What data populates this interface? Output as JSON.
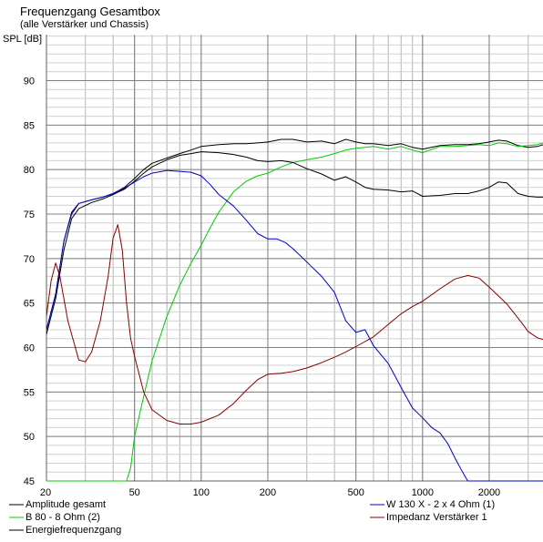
{
  "header": {
    "title": "Frequenzgang Gesamtbox",
    "subtitle": "(alle Verstärker und Chassis)",
    "ylabel": "SPL [dB]"
  },
  "chart_data": {
    "type": "line",
    "title": "Frequenzgang Gesamtbox",
    "subtitle": "(alle Verstärker und Chassis)",
    "xlabel": "",
    "ylabel": "SPL [dB]",
    "xscale": "log",
    "xlim": [
      20,
      3500
    ],
    "ylim": [
      45,
      95
    ],
    "grid": true,
    "legend_position": "bottom",
    "xticks": [
      20,
      50,
      100,
      200,
      500,
      1000,
      2000
    ],
    "xtick_labels": [
      "20",
      "50",
      "100",
      "200",
      "500",
      "1000",
      "2000"
    ],
    "yticks": [
      45,
      50,
      55,
      60,
      65,
      70,
      75,
      80,
      85,
      90
    ],
    "ytick_labels": [
      "45",
      "50",
      "55",
      "60",
      "65",
      "70",
      "75",
      "80",
      "85",
      "90"
    ],
    "series": [
      {
        "name": "Amplitude gesamt",
        "color": "#000000",
        "points": [
          [
            20,
            62
          ],
          [
            22,
            66
          ],
          [
            24,
            72
          ],
          [
            26,
            75.2
          ],
          [
            28,
            76.2
          ],
          [
            32,
            76.6
          ],
          [
            36,
            76.9
          ],
          [
            40,
            77.3
          ],
          [
            45,
            78
          ],
          [
            50,
            79
          ],
          [
            55,
            80
          ],
          [
            60,
            80.7
          ],
          [
            70,
            81.3
          ],
          [
            80,
            81.8
          ],
          [
            90,
            82.2
          ],
          [
            100,
            82.6
          ],
          [
            120,
            82.8
          ],
          [
            140,
            82.9
          ],
          [
            160,
            82.9
          ],
          [
            180,
            83.0
          ],
          [
            200,
            83.1
          ],
          [
            230,
            83.4
          ],
          [
            260,
            83.4
          ],
          [
            300,
            83.1
          ],
          [
            350,
            83.2
          ],
          [
            400,
            82.9
          ],
          [
            450,
            83.4
          ],
          [
            500,
            83.1
          ],
          [
            550,
            82.9
          ],
          [
            600,
            82.9
          ],
          [
            700,
            82.7
          ],
          [
            800,
            82.9
          ],
          [
            900,
            82.5
          ],
          [
            1000,
            82.3
          ],
          [
            1200,
            82.7
          ],
          [
            1400,
            82.8
          ],
          [
            1600,
            82.8
          ],
          [
            1800,
            82.9
          ],
          [
            2000,
            83.1
          ],
          [
            2200,
            83.3
          ],
          [
            2400,
            83.2
          ],
          [
            2700,
            82.7
          ],
          [
            3000,
            82.5
          ],
          [
            3300,
            82.6
          ],
          [
            3500,
            82.8
          ]
        ]
      },
      {
        "name": "B 80 - 8 Ohm (2)",
        "color": "#00cc00",
        "points": [
          [
            20,
            45
          ],
          [
            46,
            45
          ],
          [
            48,
            46.5
          ],
          [
            50,
            50
          ],
          [
            55,
            54.5
          ],
          [
            60,
            58.5
          ],
          [
            70,
            63.5
          ],
          [
            80,
            67
          ],
          [
            90,
            69.5
          ],
          [
            100,
            71.5
          ],
          [
            110,
            73.5
          ],
          [
            120,
            75.2
          ],
          [
            140,
            77.5
          ],
          [
            160,
            78.7
          ],
          [
            180,
            79.3
          ],
          [
            200,
            79.6
          ],
          [
            230,
            80.3
          ],
          [
            260,
            80.8
          ],
          [
            300,
            81.1
          ],
          [
            350,
            81.4
          ],
          [
            400,
            81.8
          ],
          [
            450,
            82.2
          ],
          [
            500,
            82.4
          ],
          [
            550,
            82.5
          ],
          [
            600,
            82.6
          ],
          [
            700,
            82.3
          ],
          [
            800,
            82.6
          ],
          [
            900,
            82.2
          ],
          [
            1000,
            81.9
          ],
          [
            1200,
            82.6
          ],
          [
            1400,
            82.6
          ],
          [
            1600,
            82.7
          ],
          [
            1800,
            82.8
          ],
          [
            2000,
            82.7
          ],
          [
            2200,
            83.0
          ],
          [
            2400,
            82.9
          ],
          [
            2700,
            82.6
          ],
          [
            3000,
            82.7
          ],
          [
            3300,
            82.8
          ],
          [
            3500,
            83.0
          ]
        ]
      },
      {
        "name": "Energiefrequenzgang",
        "color": "#000000",
        "points": [
          [
            20,
            61.5
          ],
          [
            22,
            65.5
          ],
          [
            24,
            71
          ],
          [
            26,
            74.5
          ],
          [
            28,
            75.6
          ],
          [
            32,
            76.3
          ],
          [
            36,
            76.7
          ],
          [
            40,
            77.2
          ],
          [
            45,
            77.8
          ],
          [
            50,
            78.7
          ],
          [
            55,
            79.6
          ],
          [
            60,
            80.3
          ],
          [
            70,
            81.1
          ],
          [
            80,
            81.6
          ],
          [
            90,
            81.8
          ],
          [
            100,
            82.0
          ],
          [
            120,
            81.9
          ],
          [
            140,
            81.7
          ],
          [
            160,
            81.4
          ],
          [
            180,
            81.0
          ],
          [
            200,
            80.9
          ],
          [
            230,
            81.0
          ],
          [
            260,
            80.8
          ],
          [
            300,
            80.1
          ],
          [
            350,
            79.5
          ],
          [
            400,
            78.8
          ],
          [
            450,
            79.2
          ],
          [
            500,
            78.6
          ],
          [
            550,
            78.0
          ],
          [
            600,
            77.8
          ],
          [
            700,
            77.7
          ],
          [
            800,
            77.5
          ],
          [
            900,
            77.6
          ],
          [
            1000,
            77.0
          ],
          [
            1200,
            77.1
          ],
          [
            1400,
            77.3
          ],
          [
            1600,
            77.3
          ],
          [
            1800,
            77.6
          ],
          [
            2000,
            78.0
          ],
          [
            2200,
            78.6
          ],
          [
            2400,
            78.5
          ],
          [
            2700,
            77.3
          ],
          [
            3000,
            77.0
          ],
          [
            3300,
            76.9
          ],
          [
            3500,
            76.9
          ]
        ]
      },
      {
        "name": "W 130 X - 2 x 4 Ohm (1)",
        "color": "#0000cc",
        "points": [
          [
            20,
            62
          ],
          [
            22,
            66
          ],
          [
            24,
            72
          ],
          [
            26,
            75
          ],
          [
            28,
            76.2
          ],
          [
            32,
            76.6
          ],
          [
            36,
            76.9
          ],
          [
            40,
            77.3
          ],
          [
            45,
            77.9
          ],
          [
            50,
            78.6
          ],
          [
            55,
            79.2
          ],
          [
            60,
            79.6
          ],
          [
            70,
            79.9
          ],
          [
            80,
            79.8
          ],
          [
            90,
            79.7
          ],
          [
            100,
            79.3
          ],
          [
            110,
            78.3
          ],
          [
            120,
            77.2
          ],
          [
            140,
            75.9
          ],
          [
            160,
            74.3
          ],
          [
            180,
            72.8
          ],
          [
            200,
            72.2
          ],
          [
            220,
            72.2
          ],
          [
            240,
            71.8
          ],
          [
            260,
            71.1
          ],
          [
            300,
            69.6
          ],
          [
            350,
            68.0
          ],
          [
            400,
            66.2
          ],
          [
            450,
            63.0
          ],
          [
            500,
            61.7
          ],
          [
            550,
            62.0
          ],
          [
            600,
            60.2
          ],
          [
            700,
            58.2
          ],
          [
            800,
            55.5
          ],
          [
            900,
            53.2
          ],
          [
            1000,
            52.1
          ],
          [
            1100,
            51.0
          ],
          [
            1200,
            50.4
          ],
          [
            1300,
            49.2
          ],
          [
            1400,
            47.6
          ],
          [
            1500,
            46.2
          ],
          [
            1600,
            45
          ],
          [
            3500,
            45
          ]
        ]
      },
      {
        "name": "Impedanz Verstärker 1",
        "color": "#880000",
        "points": [
          [
            20,
            63.5
          ],
          [
            21,
            67.5
          ],
          [
            22,
            69.5
          ],
          [
            23,
            68
          ],
          [
            25,
            63
          ],
          [
            28,
            58.6
          ],
          [
            30,
            58.4
          ],
          [
            32,
            59.5
          ],
          [
            35,
            63
          ],
          [
            38,
            68
          ],
          [
            40,
            72.3
          ],
          [
            42,
            73.8
          ],
          [
            44,
            71
          ],
          [
            46,
            65
          ],
          [
            48,
            61
          ],
          [
            50,
            59
          ],
          [
            55,
            55
          ],
          [
            60,
            53
          ],
          [
            70,
            51.8
          ],
          [
            80,
            51.4
          ],
          [
            90,
            51.4
          ],
          [
            100,
            51.6
          ],
          [
            120,
            52.4
          ],
          [
            140,
            53.7
          ],
          [
            160,
            55.2
          ],
          [
            180,
            56.4
          ],
          [
            200,
            57.0
          ],
          [
            230,
            57.1
          ],
          [
            260,
            57.3
          ],
          [
            300,
            57.7
          ],
          [
            350,
            58.3
          ],
          [
            400,
            58.9
          ],
          [
            450,
            59.5
          ],
          [
            500,
            60.1
          ],
          [
            600,
            61.2
          ],
          [
            700,
            62.6
          ],
          [
            800,
            63.8
          ],
          [
            900,
            64.6
          ],
          [
            1000,
            65.2
          ],
          [
            1200,
            66.6
          ],
          [
            1400,
            67.7
          ],
          [
            1600,
            68.1
          ],
          [
            1800,
            67.8
          ],
          [
            2000,
            66.8
          ],
          [
            2400,
            64.9
          ],
          [
            2800,
            62.8
          ],
          [
            3000,
            61.8
          ],
          [
            3300,
            61.1
          ],
          [
            3500,
            60.9
          ]
        ]
      }
    ]
  }
}
